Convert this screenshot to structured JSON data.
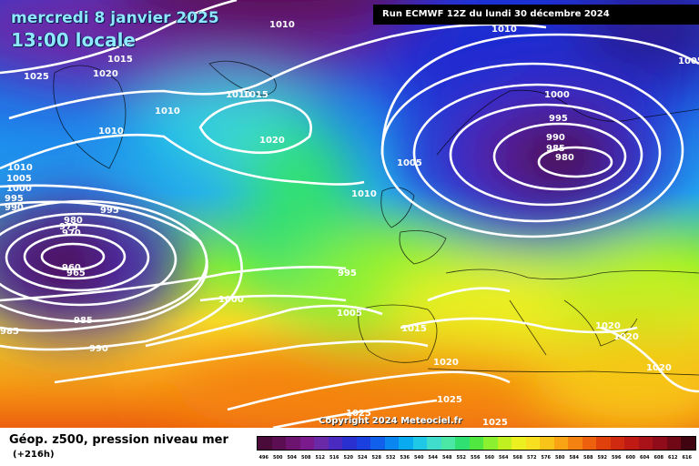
{
  "header": {
    "date": "mercredi 8 janvier 2025",
    "local_time": "13:00 locale",
    "run_info": "Run ECMWF 12Z du lundi 30 décembre 2024"
  },
  "copyright": "Copyright 2024 Meteociel.fr",
  "footer": {
    "parameter": "Géop. z500, pression niveau mer",
    "lead_time": "(+216h)"
  },
  "legend": {
    "values": [
      "496",
      "500",
      "504",
      "508",
      "512",
      "516",
      "520",
      "524",
      "528",
      "532",
      "536",
      "540",
      "544",
      "548",
      "552",
      "556",
      "560",
      "564",
      "568",
      "572",
      "576",
      "580",
      "584",
      "588",
      "592",
      "596",
      "600",
      "604",
      "608",
      "612",
      "616"
    ],
    "colors": [
      "#4a0a3a",
      "#5c0e52",
      "#6c1470",
      "#7a1a8c",
      "#6a2aa8",
      "#4a2ac0",
      "#2a30d0",
      "#1a40e0",
      "#1060ec",
      "#0a86f0",
      "#0aaaf0",
      "#20c8e8",
      "#40dccc",
      "#4ae8a4",
      "#30e070",
      "#50e840",
      "#8af030",
      "#c0f020",
      "#ecf020",
      "#f8e020",
      "#f8c418",
      "#f8a414",
      "#f48210",
      "#ec600e",
      "#e0400c",
      "#d02a10",
      "#c01a14",
      "#a81218",
      "#900c1a",
      "#700816",
      "#400410"
    ]
  },
  "isobars": [
    {
      "text": "1010"
    },
    {
      "text": "1010"
    },
    {
      "text": "1005"
    },
    {
      "text": "1015"
    },
    {
      "text": "1025"
    },
    {
      "text": "1020"
    },
    {
      "text": "1010"
    },
    {
      "text": "1015"
    },
    {
      "text": "1010"
    },
    {
      "text": "1010"
    },
    {
      "text": "1020"
    },
    {
      "text": "1010"
    },
    {
      "text": "1005"
    },
    {
      "text": "1000"
    },
    {
      "text": "995"
    },
    {
      "text": "990"
    },
    {
      "text": "995"
    },
    {
      "text": "980"
    },
    {
      "text": "975"
    },
    {
      "text": "970"
    },
    {
      "text": "960"
    },
    {
      "text": "965"
    },
    {
      "text": "985"
    },
    {
      "text": "985"
    },
    {
      "text": "990"
    },
    {
      "text": "1000"
    },
    {
      "text": "995"
    },
    {
      "text": "1010"
    },
    {
      "text": "1005"
    },
    {
      "text": "1000"
    },
    {
      "text": "995"
    },
    {
      "text": "990"
    },
    {
      "text": "985"
    },
    {
      "text": "980"
    },
    {
      "text": "1005"
    },
    {
      "text": "1015"
    },
    {
      "text": "1020"
    },
    {
      "text": "1020"
    },
    {
      "text": "1020"
    },
    {
      "text": "1025"
    },
    {
      "text": "1020"
    },
    {
      "text": "1025"
    },
    {
      "text": "1025"
    }
  ]
}
